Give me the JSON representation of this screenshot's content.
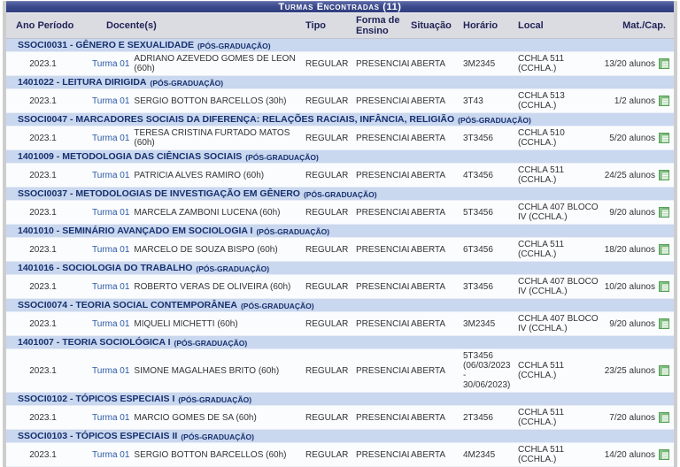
{
  "table": {
    "title": "Turmas Encontradas (11)",
    "columns": [
      "Ano Período",
      "Docente(s)",
      "Tipo",
      "Forma de Ensino",
      "Situação",
      "Horário",
      "Local",
      "Mat./Cap."
    ],
    "groups": [
      {
        "course": "SSOCI0031 - GÊNERO E SEXUALIDADE",
        "level": "(PÓS-GRADUAÇÃO)",
        "rows": [
          {
            "ano": "2023.1",
            "turma": "Turma 01",
            "docente": "ADRIANO AZEVEDO GOMES DE LEON (60h)",
            "tipo": "REGULAR",
            "forma": "PRESENCIAL",
            "situacao": "ABERTA",
            "horario": "3M2345",
            "local": "CCHLA 511 (CCHLA.)",
            "matcap": "13/20 alunos"
          }
        ]
      },
      {
        "course": "1401022 - LEITURA DIRIGIDA",
        "level": "(PÓS-GRADUAÇÃO)",
        "rows": [
          {
            "ano": "2023.1",
            "turma": "Turma 01",
            "docente": "SERGIO BOTTON BARCELLOS (30h)",
            "tipo": "REGULAR",
            "forma": "PRESENCIAL",
            "situacao": "ABERTA",
            "horario": "3T43",
            "local": "CCHLA 513 (CCHLA.)",
            "matcap": "1/2 alunos"
          }
        ]
      },
      {
        "course": "SSOCI0047 - MARCADORES SOCIAIS DA DIFERENÇA: RELAÇÕES RACIAIS, INFÂNCIA, RELIGIÃO",
        "level": "(PÓS-GRADUAÇÃO)",
        "rows": [
          {
            "ano": "2023.1",
            "turma": "Turma 01",
            "docente": "TERESA CRISTINA FURTADO MATOS (60h)",
            "tipo": "REGULAR",
            "forma": "PRESENCIAL",
            "situacao": "ABERTA",
            "horario": "3T3456",
            "local": "CCHLA 510 (CCHLA.)",
            "matcap": "5/20 alunos"
          }
        ]
      },
      {
        "course": "1401009 - METODOLOGIA DAS CIÊNCIAS SOCIAIS",
        "level": "(PÓS-GRADUAÇÃO)",
        "rows": [
          {
            "ano": "2023.1",
            "turma": "Turma 01",
            "docente": "PATRICIA ALVES RAMIRO (60h)",
            "tipo": "REGULAR",
            "forma": "PRESENCIAL",
            "situacao": "ABERTA",
            "horario": "4T3456",
            "local": "CCHLA 511 (CCHLA.)",
            "matcap": "24/25 alunos"
          }
        ]
      },
      {
        "course": "SSOCI0037 - METODOLOGIAS DE INVESTIGAÇÃO EM GÊNERO",
        "level": "(PÓS-GRADUAÇÃO)",
        "rows": [
          {
            "ano": "2023.1",
            "turma": "Turma 01",
            "docente": "MARCELA ZAMBONI LUCENA (60h)",
            "tipo": "REGULAR",
            "forma": "PRESENCIAL",
            "situacao": "ABERTA",
            "horario": "5T3456",
            "local": "CCHLA 407 BLOCO IV (CCHLA.)",
            "matcap": "9/20 alunos"
          }
        ]
      },
      {
        "course": "1401010 - SEMINÁRIO AVANÇADO EM SOCIOLOGIA I",
        "level": "(PÓS-GRADUAÇÃO)",
        "rows": [
          {
            "ano": "2023.1",
            "turma": "Turma 01",
            "docente": "MARCELO DE SOUZA BISPO (60h)",
            "tipo": "REGULAR",
            "forma": "PRESENCIAL",
            "situacao": "ABERTA",
            "horario": "6T3456",
            "local": "CCHLA 511 (CCHLA.)",
            "matcap": "18/20 alunos"
          }
        ]
      },
      {
        "course": "1401016 - SOCIOLOGIA DO TRABALHO",
        "level": "(PÓS-GRADUAÇÃO)",
        "rows": [
          {
            "ano": "2023.1",
            "turma": "Turma 01",
            "docente": "ROBERTO VERAS DE OLIVEIRA (60h)",
            "tipo": "REGULAR",
            "forma": "PRESENCIAL",
            "situacao": "ABERTA",
            "horario": "3T3456",
            "local": "CCHLA 407 BLOCO IV (CCHLA.)",
            "matcap": "10/20 alunos"
          }
        ]
      },
      {
        "course": "SSOCI0074 - TEORIA SOCIAL CONTEMPORÂNEA",
        "level": "(PÓS-GRADUAÇÃO)",
        "rows": [
          {
            "ano": "2023.1",
            "turma": "Turma 01",
            "docente": "MIQUELI MICHETTI (60h)",
            "tipo": "REGULAR",
            "forma": "PRESENCIAL",
            "situacao": "ABERTA",
            "horario": "3M2345",
            "local": "CCHLA 407 BLOCO IV (CCHLA.)",
            "matcap": "9/20 alunos"
          }
        ]
      },
      {
        "course": "1401007 - TEORIA SOCIOLÓGICA I",
        "level": "(PÓS-GRADUAÇÃO)",
        "rows": [
          {
            "ano": "2023.1",
            "turma": "Turma 01",
            "docente": "SIMONE MAGALHAES BRITO (60h)",
            "tipo": "REGULAR",
            "forma": "PRESENCIAL",
            "situacao": "ABERTA",
            "horario": "5T3456 (06/03/2023 - 30/06/2023)",
            "local": "CCHLA 511 (CCHLA.)",
            "matcap": "23/25 alunos"
          }
        ]
      },
      {
        "course": "SSOCI0102 - TÓPICOS ESPECIAIS I",
        "level": "(PÓS-GRADUAÇÃO)",
        "rows": [
          {
            "ano": "2023.1",
            "turma": "Turma 01",
            "docente": "MARCIO GOMES DE SA (60h)",
            "tipo": "REGULAR",
            "forma": "PRESENCIAL",
            "situacao": "ABERTA",
            "horario": "2T3456",
            "local": "CCHLA 511 (CCHLA.)",
            "matcap": "7/20 alunos"
          }
        ]
      },
      {
        "course": "SSOCI0103 - TÓPICOS ESPECIAIS II",
        "level": "(PÓS-GRADUAÇÃO)",
        "rows": [
          {
            "ano": "2023.1",
            "turma": "Turma 01",
            "docente": "SERGIO BOTTON BARCELLOS (60h)",
            "tipo": "REGULAR",
            "forma": "PRESENCIAL",
            "situacao": "ABERTA",
            "horario": "4M2345",
            "local": "CCHLA 511 (CCHLA.)",
            "matcap": "14/20 alunos"
          }
        ]
      }
    ],
    "icons": {
      "details": "class-details-spreadsheet-icon"
    }
  },
  "colors": {
    "caption_bar": "#3b4a8c",
    "group_row_bg": "#c9d7ef",
    "header_row_bg": "#dbdbe2",
    "header_text": "#1f2355",
    "group_text": "#16306e",
    "link": "#2a59a5",
    "icon_green": "#57a057",
    "side_frame": "#cdcdcd"
  }
}
